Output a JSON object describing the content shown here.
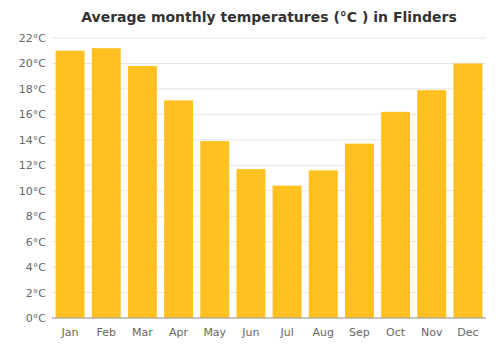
{
  "chart_data": {
    "type": "bar",
    "title": "Average monthly temperatures (°C ) in Flinders",
    "categories": [
      "Jan",
      "Feb",
      "Mar",
      "Apr",
      "May",
      "Jun",
      "Jul",
      "Aug",
      "Sep",
      "Oct",
      "Nov",
      "Dec"
    ],
    "values": [
      21.0,
      21.2,
      19.8,
      17.1,
      13.9,
      11.7,
      10.4,
      11.6,
      13.7,
      16.2,
      17.9,
      20.0
    ],
    "color": "#FFC020",
    "ylim": [
      0,
      22
    ],
    "yticks": [
      {
        "value": 0,
        "label": "0°C"
      },
      {
        "value": 2,
        "label": "2°C"
      },
      {
        "value": 4,
        "label": "4°C"
      },
      {
        "value": 6,
        "label": "6°C"
      },
      {
        "value": 8,
        "label": "8°C"
      },
      {
        "value": 10,
        "label": "10°C"
      },
      {
        "value": 12,
        "label": "12°C"
      },
      {
        "value": 14,
        "label": "14°C"
      },
      {
        "value": 16,
        "label": "16°C"
      },
      {
        "value": 18,
        "label": "18°C"
      },
      {
        "value": 20,
        "label": "20°C"
      },
      {
        "value": 22,
        "label": "22°C"
      }
    ],
    "grid": true
  }
}
